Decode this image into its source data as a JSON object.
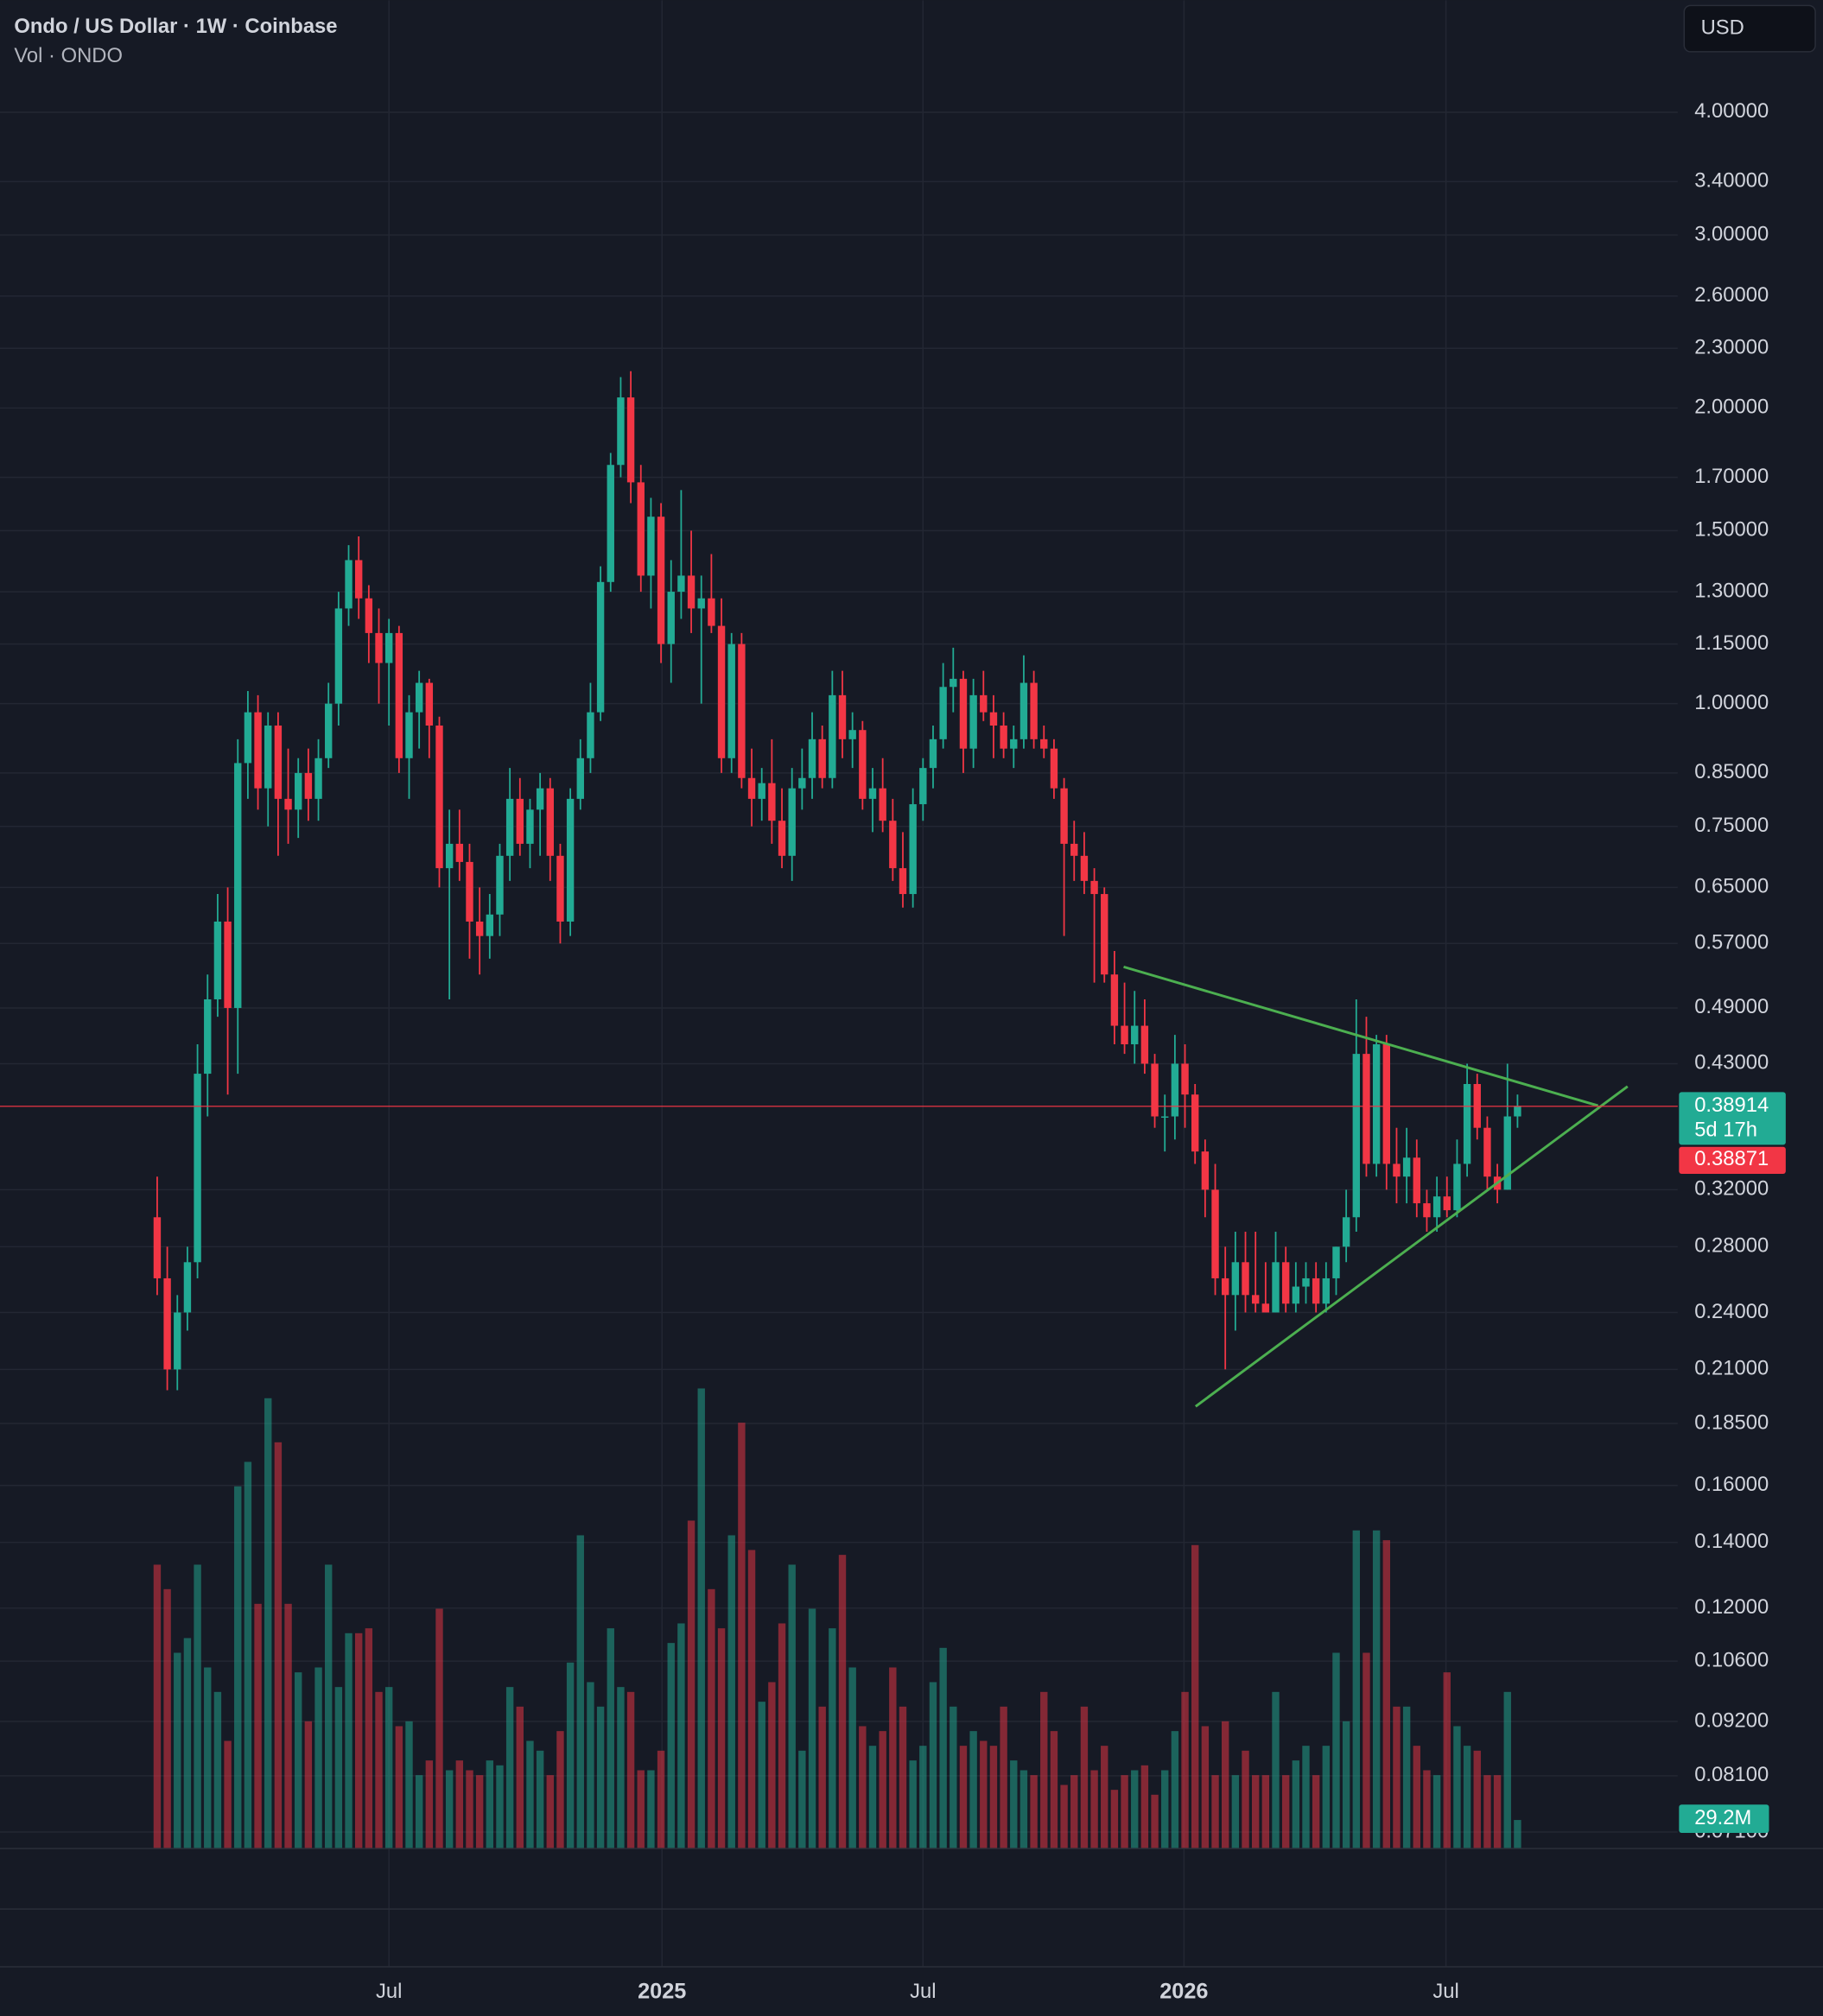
{
  "chart_data": {
    "type": "candlestick",
    "title": "Ondo / US Dollar · 1W · Coinbase",
    "subtitle": "Vol · ONDO",
    "currency": "USD",
    "log_scale": true,
    "grid": true,
    "up_color": "#22ab94",
    "down_color": "#f23645",
    "ylim": [
      0.0683,
      5.2
    ],
    "yticks": [
      {
        "value": 4,
        "label": "4.00000"
      },
      {
        "value": 3.4,
        "label": "3.40000"
      },
      {
        "value": 3,
        "label": "3.00000"
      },
      {
        "value": 2.6,
        "label": "2.60000"
      },
      {
        "value": 2.3,
        "label": "2.30000"
      },
      {
        "value": 2,
        "label": "2.00000"
      },
      {
        "value": 1.7,
        "label": "1.70000"
      },
      {
        "value": 1.5,
        "label": "1.50000"
      },
      {
        "value": 1.3,
        "label": "1.30000"
      },
      {
        "value": 1.15,
        "label": "1.15000"
      },
      {
        "value": 1,
        "label": "1.00000"
      },
      {
        "value": 0.85,
        "label": "0.85000"
      },
      {
        "value": 0.75,
        "label": "0.75000"
      },
      {
        "value": 0.65,
        "label": "0.65000"
      },
      {
        "value": 0.57,
        "label": "0.57000"
      },
      {
        "value": 0.49,
        "label": "0.49000"
      },
      {
        "value": 0.43,
        "label": "0.43000"
      },
      {
        "value": 0.32,
        "label": "0.32000"
      },
      {
        "value": 0.28,
        "label": "0.28000"
      },
      {
        "value": 0.24,
        "label": "0.24000"
      },
      {
        "value": 0.21,
        "label": "0.21000"
      },
      {
        "value": 0.185,
        "label": "0.18500"
      },
      {
        "value": 0.16,
        "label": "0.16000"
      },
      {
        "value": 0.14,
        "label": "0.14000"
      },
      {
        "value": 0.12,
        "label": "0.12000"
      },
      {
        "value": 0.106,
        "label": "0.10600"
      },
      {
        "value": 0.092,
        "label": "0.09200"
      },
      {
        "value": 0.081,
        "label": "0.08100"
      },
      {
        "value": 0.071,
        "label": "0.07100"
      }
    ],
    "xlim": [
      -15.6,
      150.9
    ],
    "xticks": [
      {
        "value": 23.0,
        "label": "Jul"
      },
      {
        "value": 50.1,
        "label": "2025"
      },
      {
        "value": 76.0,
        "label": "Jul"
      },
      {
        "value": 101.9,
        "label": "2026"
      },
      {
        "value": 127.9,
        "label": "Jul"
      }
    ],
    "candles": [
      [
        0.3,
        0.33,
        0.25,
        0.26
      ],
      [
        0.26,
        0.28,
        0.2,
        0.21
      ],
      [
        0.21,
        0.25,
        0.2,
        0.24
      ],
      [
        0.24,
        0.28,
        0.23,
        0.27
      ],
      [
        0.27,
        0.45,
        0.26,
        0.42
      ],
      [
        0.42,
        0.53,
        0.38,
        0.5
      ],
      [
        0.5,
        0.64,
        0.48,
        0.6
      ],
      [
        0.6,
        0.65,
        0.4,
        0.49
      ],
      [
        0.49,
        0.92,
        0.42,
        0.87
      ],
      [
        0.87,
        1.03,
        0.8,
        0.98
      ],
      [
        0.98,
        1.02,
        0.78,
        0.82
      ],
      [
        0.82,
        0.98,
        0.75,
        0.95
      ],
      [
        0.95,
        0.98,
        0.7,
        0.8
      ],
      [
        0.8,
        0.9,
        0.72,
        0.78
      ],
      [
        0.78,
        0.88,
        0.73,
        0.85
      ],
      [
        0.85,
        0.9,
        0.76,
        0.8
      ],
      [
        0.8,
        0.92,
        0.76,
        0.88
      ],
      [
        0.88,
        1.05,
        0.86,
        1.0
      ],
      [
        1.0,
        1.3,
        0.95,
        1.25
      ],
      [
        1.25,
        1.45,
        1.2,
        1.4
      ],
      [
        1.4,
        1.48,
        1.22,
        1.28
      ],
      [
        1.28,
        1.32,
        1.1,
        1.18
      ],
      [
        1.18,
        1.25,
        1.0,
        1.1
      ],
      [
        1.1,
        1.22,
        0.95,
        1.18
      ],
      [
        1.18,
        1.2,
        0.85,
        0.88
      ],
      [
        0.88,
        1.02,
        0.8,
        0.98
      ],
      [
        0.98,
        1.08,
        0.9,
        1.05
      ],
      [
        1.05,
        1.06,
        0.88,
        0.95
      ],
      [
        0.95,
        0.97,
        0.65,
        0.68
      ],
      [
        0.68,
        0.78,
        0.5,
        0.72
      ],
      [
        0.72,
        0.78,
        0.66,
        0.69
      ],
      [
        0.69,
        0.72,
        0.55,
        0.6
      ],
      [
        0.6,
        0.65,
        0.53,
        0.58
      ],
      [
        0.58,
        0.64,
        0.55,
        0.61
      ],
      [
        0.61,
        0.72,
        0.58,
        0.7
      ],
      [
        0.7,
        0.86,
        0.66,
        0.8
      ],
      [
        0.8,
        0.84,
        0.7,
        0.72
      ],
      [
        0.72,
        0.8,
        0.68,
        0.78
      ],
      [
        0.78,
        0.85,
        0.7,
        0.82
      ],
      [
        0.82,
        0.84,
        0.66,
        0.7
      ],
      [
        0.7,
        0.72,
        0.57,
        0.6
      ],
      [
        0.6,
        0.82,
        0.58,
        0.8
      ],
      [
        0.8,
        0.92,
        0.78,
        0.88
      ],
      [
        0.88,
        1.05,
        0.85,
        0.98
      ],
      [
        0.98,
        1.38,
        0.96,
        1.33
      ],
      [
        1.33,
        1.8,
        1.3,
        1.75
      ],
      [
        1.75,
        2.15,
        1.7,
        2.05
      ],
      [
        2.05,
        2.18,
        1.6,
        1.68
      ],
      [
        1.68,
        1.75,
        1.3,
        1.35
      ],
      [
        1.35,
        1.62,
        1.25,
        1.55
      ],
      [
        1.55,
        1.6,
        1.1,
        1.15
      ],
      [
        1.15,
        1.4,
        1.05,
        1.3
      ],
      [
        1.3,
        1.65,
        1.22,
        1.35
      ],
      [
        1.35,
        1.5,
        1.18,
        1.25
      ],
      [
        1.25,
        1.35,
        1.0,
        1.28
      ],
      [
        1.28,
        1.42,
        1.18,
        1.2
      ],
      [
        1.2,
        1.28,
        0.85,
        0.88
      ],
      [
        0.88,
        1.18,
        0.85,
        1.15
      ],
      [
        1.15,
        1.18,
        0.82,
        0.84
      ],
      [
        0.84,
        0.9,
        0.75,
        0.8
      ],
      [
        0.8,
        0.86,
        0.76,
        0.83
      ],
      [
        0.83,
        0.92,
        0.72,
        0.76
      ],
      [
        0.76,
        0.82,
        0.68,
        0.7
      ],
      [
        0.7,
        0.86,
        0.66,
        0.82
      ],
      [
        0.82,
        0.9,
        0.78,
        0.84
      ],
      [
        0.84,
        0.98,
        0.8,
        0.92
      ],
      [
        0.92,
        0.95,
        0.82,
        0.84
      ],
      [
        0.84,
        1.08,
        0.82,
        1.02
      ],
      [
        1.02,
        1.08,
        0.88,
        0.92
      ],
      [
        0.92,
        0.98,
        0.86,
        0.94
      ],
      [
        0.94,
        0.96,
        0.78,
        0.8
      ],
      [
        0.8,
        0.86,
        0.74,
        0.82
      ],
      [
        0.82,
        0.88,
        0.74,
        0.76
      ],
      [
        0.76,
        0.8,
        0.66,
        0.68
      ],
      [
        0.68,
        0.74,
        0.62,
        0.64
      ],
      [
        0.64,
        0.82,
        0.62,
        0.79
      ],
      [
        0.79,
        0.88,
        0.76,
        0.86
      ],
      [
        0.86,
        0.95,
        0.82,
        0.92
      ],
      [
        0.92,
        1.1,
        0.9,
        1.04
      ],
      [
        1.04,
        1.14,
        0.98,
        1.06
      ],
      [
        1.06,
        1.08,
        0.85,
        0.9
      ],
      [
        0.9,
        1.06,
        0.86,
        1.02
      ],
      [
        1.02,
        1.08,
        0.96,
        0.98
      ],
      [
        0.98,
        1.02,
        0.88,
        0.95
      ],
      [
        0.95,
        0.98,
        0.88,
        0.9
      ],
      [
        0.9,
        0.95,
        0.86,
        0.92
      ],
      [
        0.92,
        1.12,
        0.9,
        1.05
      ],
      [
        1.05,
        1.08,
        0.9,
        0.92
      ],
      [
        0.92,
        0.95,
        0.88,
        0.9
      ],
      [
        0.9,
        0.92,
        0.8,
        0.82
      ],
      [
        0.82,
        0.84,
        0.58,
        0.72
      ],
      [
        0.72,
        0.76,
        0.66,
        0.7
      ],
      [
        0.7,
        0.74,
        0.64,
        0.66
      ],
      [
        0.66,
        0.68,
        0.52,
        0.64
      ],
      [
        0.64,
        0.65,
        0.52,
        0.53
      ],
      [
        0.53,
        0.56,
        0.45,
        0.47
      ],
      [
        0.47,
        0.52,
        0.44,
        0.45
      ],
      [
        0.45,
        0.51,
        0.43,
        0.47
      ],
      [
        0.47,
        0.5,
        0.42,
        0.43
      ],
      [
        0.43,
        0.44,
        0.37,
        0.38
      ],
      [
        0.38,
        0.4,
        0.35,
        0.38
      ],
      [
        0.38,
        0.46,
        0.36,
        0.43
      ],
      [
        0.43,
        0.45,
        0.37,
        0.4
      ],
      [
        0.4,
        0.41,
        0.34,
        0.35
      ],
      [
        0.35,
        0.36,
        0.3,
        0.32
      ],
      [
        0.32,
        0.34,
        0.25,
        0.26
      ],
      [
        0.26,
        0.28,
        0.21,
        0.25
      ],
      [
        0.25,
        0.29,
        0.23,
        0.27
      ],
      [
        0.27,
        0.29,
        0.24,
        0.25
      ],
      [
        0.25,
        0.29,
        0.24,
        0.245
      ],
      [
        0.245,
        0.27,
        0.24,
        0.24
      ],
      [
        0.24,
        0.29,
        0.24,
        0.27
      ],
      [
        0.27,
        0.28,
        0.24,
        0.245
      ],
      [
        0.245,
        0.27,
        0.24,
        0.255
      ],
      [
        0.255,
        0.27,
        0.245,
        0.26
      ],
      [
        0.26,
        0.27,
        0.24,
        0.245
      ],
      [
        0.245,
        0.27,
        0.24,
        0.26
      ],
      [
        0.26,
        0.28,
        0.25,
        0.28
      ],
      [
        0.28,
        0.32,
        0.27,
        0.3
      ],
      [
        0.3,
        0.5,
        0.29,
        0.44
      ],
      [
        0.44,
        0.48,
        0.33,
        0.34
      ],
      [
        0.34,
        0.46,
        0.33,
        0.45
      ],
      [
        0.45,
        0.46,
        0.32,
        0.34
      ],
      [
        0.34,
        0.37,
        0.31,
        0.33
      ],
      [
        0.33,
        0.37,
        0.31,
        0.345
      ],
      [
        0.345,
        0.36,
        0.3,
        0.31
      ],
      [
        0.31,
        0.32,
        0.29,
        0.3
      ],
      [
        0.3,
        0.33,
        0.29,
        0.315
      ],
      [
        0.315,
        0.33,
        0.3,
        0.305
      ],
      [
        0.305,
        0.36,
        0.3,
        0.34
      ],
      [
        0.34,
        0.43,
        0.33,
        0.41
      ],
      [
        0.41,
        0.42,
        0.36,
        0.37
      ],
      [
        0.37,
        0.38,
        0.32,
        0.33
      ],
      [
        0.33,
        0.34,
        0.31,
        0.32
      ],
      [
        0.32,
        0.43,
        0.32,
        0.38
      ],
      [
        0.38,
        0.4,
        0.37,
        0.38914
      ]
    ],
    "volume": [
      290000000,
      265000000,
      200000000,
      215000000,
      290000000,
      185000000,
      160000000,
      110000000,
      370000000,
      395000000,
      250000000,
      460000000,
      415000000,
      250000000,
      180000000,
      130000000,
      185000000,
      290000000,
      165000000,
      220000000,
      220000000,
      225000000,
      160000000,
      165000000,
      125000000,
      130000000,
      75000000,
      90000000,
      245000000,
      80000000,
      90000000,
      80000000,
      75000000,
      90000000,
      85000000,
      165000000,
      145000000,
      110000000,
      100000000,
      75000000,
      120000000,
      190000000,
      320000000,
      170000000,
      145000000,
      225000000,
      165000000,
      160000000,
      80000000,
      80000000,
      100000000,
      210000000,
      230000000,
      335000000,
      470000000,
      265000000,
      225000000,
      320000000,
      435000000,
      305000000,
      150000000,
      170000000,
      230000000,
      290000000,
      100000000,
      245000000,
      145000000,
      225000000,
      300000000,
      185000000,
      125000000,
      105000000,
      120000000,
      185000000,
      145000000,
      90000000,
      105000000,
      170000000,
      205000000,
      145000000,
      105000000,
      120000000,
      110000000,
      105000000,
      145000000,
      90000000,
      80000000,
      75000000,
      160000000,
      120000000,
      65000000,
      75000000,
      145000000,
      80000000,
      105000000,
      60000000,
      75000000,
      80000000,
      85000000,
      55000000,
      80000000,
      120000000,
      160000000,
      310000000,
      125000000,
      75000000,
      130000000,
      75000000,
      100000000,
      75000000,
      75000000,
      160000000,
      75000000,
      90000000,
      105000000,
      75000000,
      105000000,
      200000000,
      130000000,
      325000000,
      200000000,
      325000000,
      315000000,
      145000000,
      145000000,
      105000000,
      80000000,
      75000000,
      180000000,
      125000000,
      105000000,
      100000000,
      75000000,
      75000000,
      160000000,
      29200000
    ],
    "volume_ylim": [
      0,
      470000000
    ],
    "last_volume_label": "29.2M",
    "last_price": 0.38914,
    "countdown": "5d 17h",
    "alt_price": 0.38871
  }
}
